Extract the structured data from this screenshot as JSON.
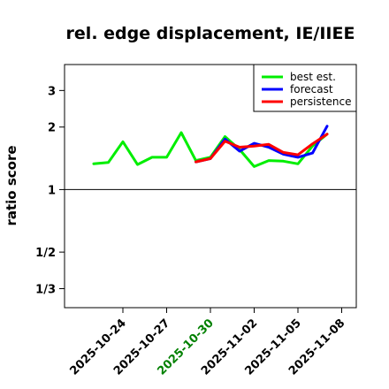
{
  "chart_data": {
    "type": "line",
    "title": "rel. edge displacement, IE/IIEE",
    "xlabel": "",
    "ylabel": "ratio score",
    "y_scale": "log",
    "ylim": [
      0.27,
      4.0
    ],
    "reference_line": 1,
    "y_ticks": [
      {
        "value": 3,
        "label": "3"
      },
      {
        "value": 2,
        "label": "2"
      },
      {
        "value": 1,
        "label": "1"
      },
      {
        "value": 0.5,
        "label": "1/2"
      },
      {
        "value": 0.3333,
        "label": "1/3"
      }
    ],
    "x_ticks": [
      {
        "date": "2025-10-24",
        "label": "2025-10-24",
        "color": "#000000"
      },
      {
        "date": "2025-10-27",
        "label": "2025-10-27",
        "color": "#000000"
      },
      {
        "date": "2025-10-30",
        "label": "2025-10-30",
        "color": "#008000"
      },
      {
        "date": "2025-11-02",
        "label": "2025-11-02",
        "color": "#000000"
      },
      {
        "date": "2025-11-05",
        "label": "2025-11-05",
        "color": "#000000"
      },
      {
        "date": "2025-11-08",
        "label": "2025-11-08",
        "color": "#000000"
      }
    ],
    "xlim": [
      "2025-10-20",
      "2025-11-09"
    ],
    "legend_position": "top-right",
    "series": [
      {
        "name": "best est.",
        "color": "#00ee00",
        "points": [
          {
            "x": "2025-10-22",
            "y": 1.33
          },
          {
            "x": "2025-10-23",
            "y": 1.35
          },
          {
            "x": "2025-10-24",
            "y": 1.7
          },
          {
            "x": "2025-10-25",
            "y": 1.32
          },
          {
            "x": "2025-10-26",
            "y": 1.43
          },
          {
            "x": "2025-10-27",
            "y": 1.43
          },
          {
            "x": "2025-10-28",
            "y": 1.88
          },
          {
            "x": "2025-10-29",
            "y": 1.38
          },
          {
            "x": "2025-10-30",
            "y": 1.43
          },
          {
            "x": "2025-10-31",
            "y": 1.8
          },
          {
            "x": "2025-11-01",
            "y": 1.56
          },
          {
            "x": "2025-11-02",
            "y": 1.29
          },
          {
            "x": "2025-11-03",
            "y": 1.38
          },
          {
            "x": "2025-11-04",
            "y": 1.37
          },
          {
            "x": "2025-11-05",
            "y": 1.33
          },
          {
            "x": "2025-11-06",
            "y": 1.62
          },
          {
            "x": "2025-11-07",
            "y": 1.85
          }
        ]
      },
      {
        "name": "forecast",
        "color": "#0000ff",
        "points": [
          {
            "x": "2025-10-29",
            "y": 1.36
          },
          {
            "x": "2025-10-30",
            "y": 1.41
          },
          {
            "x": "2025-10-31",
            "y": 1.75
          },
          {
            "x": "2025-11-01",
            "y": 1.53
          },
          {
            "x": "2025-11-02",
            "y": 1.67
          },
          {
            "x": "2025-11-03",
            "y": 1.6
          },
          {
            "x": "2025-11-04",
            "y": 1.48
          },
          {
            "x": "2025-11-05",
            "y": 1.43
          },
          {
            "x": "2025-11-06",
            "y": 1.5
          },
          {
            "x": "2025-11-07",
            "y": 2.02
          }
        ]
      },
      {
        "name": "persistence",
        "color": "#ff0000",
        "points": [
          {
            "x": "2025-10-29",
            "y": 1.36
          },
          {
            "x": "2025-10-30",
            "y": 1.41
          },
          {
            "x": "2025-10-31",
            "y": 1.71
          },
          {
            "x": "2025-11-01",
            "y": 1.6
          },
          {
            "x": "2025-11-02",
            "y": 1.62
          },
          {
            "x": "2025-11-03",
            "y": 1.65
          },
          {
            "x": "2025-11-04",
            "y": 1.51
          },
          {
            "x": "2025-11-05",
            "y": 1.47
          },
          {
            "x": "2025-11-06",
            "y": 1.66
          },
          {
            "x": "2025-11-07",
            "y": 1.85
          }
        ]
      }
    ]
  }
}
